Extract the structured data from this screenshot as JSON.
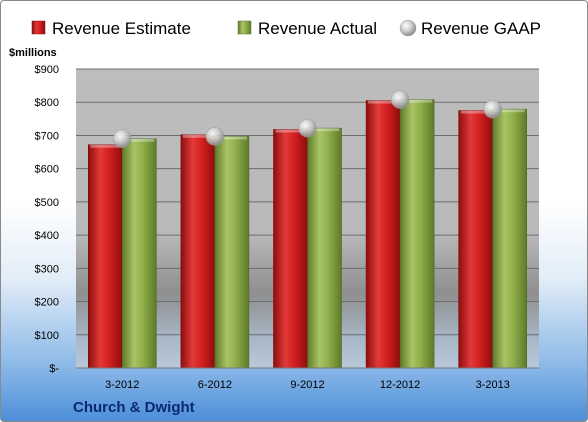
{
  "chart_data": {
    "type": "bar",
    "unit_label": "$millions",
    "categories": [
      "3-2012",
      "6-2012",
      "9-2012",
      "12-2012",
      "3-2013"
    ],
    "series": [
      {
        "name": "Revenue Estimate",
        "kind": "bar",
        "color": "#d42020",
        "values": [
          672,
          702,
          718,
          805,
          775
        ]
      },
      {
        "name": "Revenue Actual",
        "kind": "bar",
        "color": "#8fb04a",
        "values": [
          690,
          697,
          722,
          808,
          779
        ]
      },
      {
        "name": "Revenue GAAP",
        "kind": "marker",
        "color": "#c8c8c8",
        "values": [
          690,
          697,
          722,
          808,
          779
        ]
      }
    ],
    "y_ticks": [
      "$-",
      "$100",
      "$200",
      "$300",
      "$400",
      "$500",
      "$600",
      "$700",
      "$800",
      "$900"
    ],
    "ylim": [
      0,
      900
    ],
    "grid": true,
    "legend_position": "top",
    "footer": "Church & Dwight"
  }
}
